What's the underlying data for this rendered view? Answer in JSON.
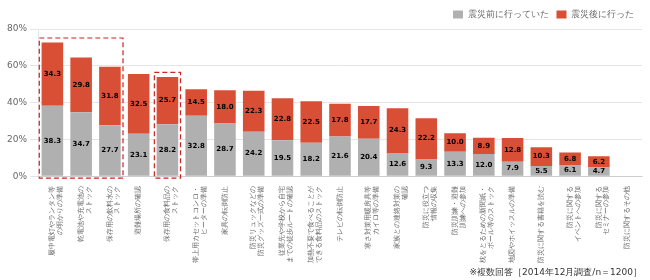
{
  "chart_data": {
    "type": "bar",
    "stacked": true,
    "categories": [
      "履中電灯やランタン等\nの明かりの準備",
      "乾電池や充電池の\nストック",
      "保存用の飲料水の\nストック",
      "避難場所の確認",
      "保存用の食料品の\nストック",
      "帯上用カセットコンロ・\nヒーターの準備",
      "家具の転倒防止",
      "防災リュックなどの\n防災グッズ一式の準備",
      "従業先や学校から自宅\nまでの徒歩ルートの確認",
      "加熱不要で食べることが\nできる食料品のストック",
      "テレビの転倒防止",
      "寒さ対策用暖房具等\nカイロ等の準備",
      "家族との連絡対策の\n確認",
      "防災に役立つ\n情報の収集",
      "防災訓練・避難\n訓練への参加",
      "枕をとるための新聞紙・\nボール等のストック",
      "地図やホイッスルの準備",
      "防災に関する書籍を読む",
      "防災に関する\nイベントへの参加",
      "防災に関する\nセミナーの参加",
      "防災に関するその他"
    ],
    "series": [
      {
        "name": "震災前に行っていた",
        "color": "#b0b0b0",
        "values": [
          38.3,
          34.7,
          27.7,
          23.1,
          28.2,
          32.8,
          28.7,
          24.2,
          19.5,
          18.2,
          21.6,
          20.4,
          12.6,
          9.3,
          13.3,
          12.0,
          7.9,
          5.5,
          6.1,
          4.7,
          0.0
        ],
        "value_labels": [
          "38.3",
          "34.7",
          "27.7",
          "23.1",
          "28.2",
          "32.8",
          "28.7",
          "24.2",
          "19.5",
          "18.2",
          "21.6",
          "20.4",
          "12.6",
          "9.3",
          "13.3",
          "12.0",
          "7.9",
          "5.5",
          "6.1",
          "4.7",
          null
        ]
      },
      {
        "name": "震災後に行った",
        "color": "#d94f35",
        "values": [
          34.3,
          29.8,
          31.8,
          32.5,
          25.7,
          14.5,
          18.0,
          22.3,
          22.8,
          22.5,
          17.8,
          17.7,
          24.3,
          22.2,
          10.0,
          8.9,
          12.8,
          10.3,
          6.8,
          6.2,
          0.0
        ],
        "value_labels": [
          "34.3",
          "29.8",
          "31.8",
          "32.5",
          "25.7",
          "14.5",
          "18.0",
          "22.3",
          "22.8",
          "22.5",
          "17.8",
          "17.7",
          "24.3",
          "22.2",
          "10.0",
          "8.9",
          "12.8",
          "10.3",
          "6.8",
          "6.2",
          null
        ]
      }
    ],
    "ylim": [
      0,
      80
    ],
    "yticks": [
      {
        "value": 0,
        "label": "0%"
      },
      {
        "value": 20,
        "label": "20%"
      },
      {
        "value": 40,
        "label": "40%"
      },
      {
        "value": 60,
        "label": "60%"
      },
      {
        "value": 80,
        "label": "80%"
      }
    ],
    "grid": "y",
    "legend": "upper right",
    "data_labels": true,
    "annotations": [
      "※複数回答［2014年12月調査/n＝1200］"
    ],
    "highlights": [
      {
        "start": 0,
        "end": 2,
        "color": "#cc2222",
        "line_style": "dashed"
      },
      {
        "start": 4,
        "end": 4,
        "color": "#cc2222",
        "line_style": "dashed"
      }
    ]
  }
}
